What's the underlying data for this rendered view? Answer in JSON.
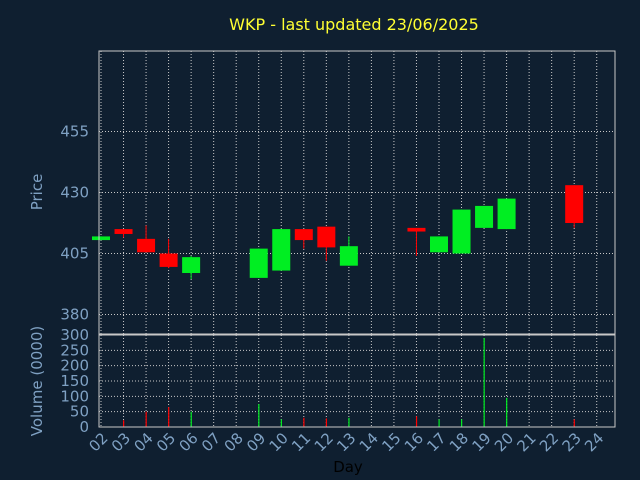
{
  "chart_data": {
    "type": "candlestick",
    "title": "WKP - last updated 23/06/2025",
    "xlabel": "Day",
    "ylabel": "Price",
    "volume_label": "Volume (0000)",
    "x_ticks": [
      "02",
      "03",
      "04",
      "05",
      "06",
      "07",
      "08",
      "09",
      "10",
      "11",
      "12",
      "13",
      "14",
      "15",
      "16",
      "17",
      "18",
      "19",
      "20",
      "21",
      "22",
      "23",
      "24"
    ],
    "price_ticks": [
      380,
      405,
      430,
      455
    ],
    "price_ylim": [
      372,
      488
    ],
    "volume_ticks": [
      0,
      50,
      100,
      150,
      200,
      250,
      300
    ],
    "volume_ylim": [
      0,
      300
    ],
    "grid": true,
    "colors": {
      "up": "#00ee22",
      "down": "#ff0000",
      "title": "#ffff33",
      "tick": "#7fa1c3",
      "background": "#0f1f30"
    },
    "candles": [
      {
        "day": "02",
        "open": 410.5,
        "close": 412.0,
        "high": 412.0,
        "low": 410.5,
        "volume": 0
      },
      {
        "day": "03",
        "open": 415.0,
        "close": 413.0,
        "high": 415.0,
        "low": 411.5,
        "volume": 22
      },
      {
        "day": "04",
        "open": 411.0,
        "close": 405.5,
        "high": 416.5,
        "low": 405.5,
        "volume": 50
      },
      {
        "day": "05",
        "open": 405.0,
        "close": 399.5,
        "high": 411.0,
        "low": 399.0,
        "volume": 65
      },
      {
        "day": "06",
        "open": 397.0,
        "close": 403.5,
        "high": 404.0,
        "low": 394.5,
        "volume": 50
      },
      {
        "day": "09",
        "open": 395.0,
        "close": 407.0,
        "high": 407.0,
        "low": 395.0,
        "volume": 75
      },
      {
        "day": "10",
        "open": 398.0,
        "close": 415.0,
        "high": 415.0,
        "low": 398.0,
        "volume": 25
      },
      {
        "day": "11",
        "open": 415.0,
        "close": 410.5,
        "high": 415.0,
        "low": 407.0,
        "volume": 30
      },
      {
        "day": "12",
        "open": 416.0,
        "close": 407.5,
        "high": 416.0,
        "low": 402.0,
        "volume": 28
      },
      {
        "day": "13",
        "open": 400.0,
        "close": 408.0,
        "high": 412.0,
        "low": 400.0,
        "volume": 30
      },
      {
        "day": "16",
        "open": 415.5,
        "close": 414.0,
        "high": 415.5,
        "low": 404.0,
        "volume": 35
      },
      {
        "day": "17",
        "open": 405.5,
        "close": 412.0,
        "high": 412.0,
        "low": 405.5,
        "volume": 25
      },
      {
        "day": "18",
        "open": 405.0,
        "close": 423.0,
        "high": 423.0,
        "low": 405.0,
        "volume": 25
      },
      {
        "day": "19",
        "open": 415.5,
        "close": 424.5,
        "high": 424.5,
        "low": 415.5,
        "volume": 290
      },
      {
        "day": "20",
        "open": 415.0,
        "close": 427.5,
        "high": 427.5,
        "low": 415.0,
        "volume": 95
      },
      {
        "day": "23",
        "open": 433.0,
        "close": 417.5,
        "high": 433.0,
        "low": 415.5,
        "volume": 25
      }
    ]
  }
}
